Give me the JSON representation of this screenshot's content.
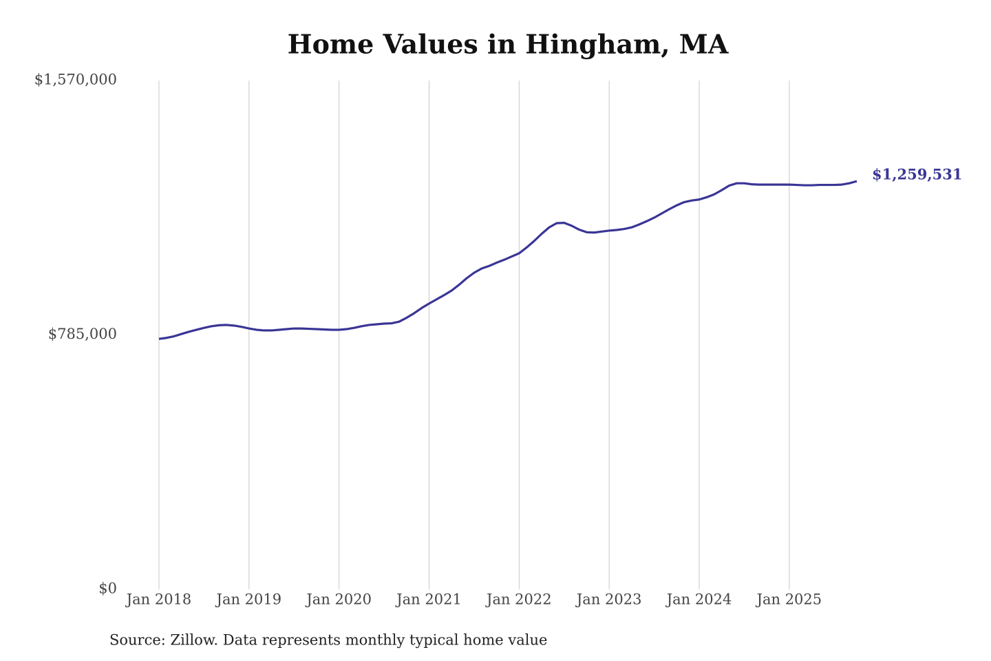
{
  "chart_data": {
    "type": "line",
    "title": "Home Values in Hingham, MA",
    "source": "Source: Zillow. Data represents monthly typical home value",
    "x": [
      "2018-01",
      "2018-02",
      "2018-03",
      "2018-04",
      "2018-05",
      "2018-06",
      "2018-07",
      "2018-08",
      "2018-09",
      "2018-10",
      "2018-11",
      "2018-12",
      "2019-01",
      "2019-02",
      "2019-03",
      "2019-04",
      "2019-05",
      "2019-06",
      "2019-07",
      "2019-08",
      "2019-09",
      "2019-10",
      "2019-11",
      "2019-12",
      "2020-01",
      "2020-02",
      "2020-03",
      "2020-04",
      "2020-05",
      "2020-06",
      "2020-07",
      "2020-08",
      "2020-09",
      "2020-10",
      "2020-11",
      "2020-12",
      "2021-01",
      "2021-02",
      "2021-03",
      "2021-04",
      "2021-05",
      "2021-06",
      "2021-07",
      "2021-08",
      "2021-09",
      "2021-10",
      "2021-11",
      "2021-12",
      "2022-01",
      "2022-02",
      "2022-03",
      "2022-04",
      "2022-05",
      "2022-06",
      "2022-07",
      "2022-08",
      "2022-09",
      "2022-10",
      "2022-11",
      "2022-12",
      "2023-01",
      "2023-02",
      "2023-03",
      "2023-04",
      "2023-05",
      "2023-06",
      "2023-07",
      "2023-08",
      "2023-09",
      "2023-10",
      "2023-11",
      "2023-12",
      "2024-01",
      "2024-02",
      "2024-03",
      "2024-04",
      "2024-05",
      "2024-06",
      "2024-07",
      "2024-08",
      "2024-09",
      "2024-10",
      "2024-11",
      "2024-12",
      "2025-01",
      "2025-02",
      "2025-03",
      "2025-04",
      "2025-05",
      "2025-06",
      "2025-07",
      "2025-08",
      "2025-09",
      "2025-10"
    ],
    "series": [
      {
        "name": "Home value",
        "color": "#3a3596",
        "values": [
          773000,
          776000,
          781000,
          788000,
          795000,
          801000,
          807000,
          812000,
          815000,
          816000,
          814000,
          810000,
          805000,
          801000,
          799000,
          799000,
          801000,
          803000,
          805000,
          805000,
          804000,
          803000,
          802000,
          801000,
          801000,
          803000,
          807000,
          812000,
          816000,
          818000,
          820000,
          821000,
          826000,
          838000,
          852000,
          868000,
          882000,
          895000,
          908000,
          922000,
          940000,
          960000,
          977000,
          990000,
          998000,
          1008000,
          1017000,
          1027000,
          1037000,
          1055000,
          1075000,
          1097000,
          1117000,
          1130000,
          1131000,
          1122000,
          1110000,
          1102000,
          1101000,
          1104000,
          1107000,
          1109000,
          1112000,
          1117000,
          1126000,
          1136000,
          1147000,
          1160000,
          1173000,
          1185000,
          1195000,
          1200000,
          1203000,
          1210000,
          1219000,
          1232000,
          1246000,
          1253000,
          1253000,
          1250000,
          1249000,
          1249000,
          1249000,
          1249000,
          1249000,
          1248000,
          1247000,
          1247000,
          1248000,
          1248000,
          1248000,
          1249000,
          1253000,
          1259531
        ],
        "value_labels": [
          null,
          null,
          null,
          null,
          null,
          null,
          null,
          null,
          null,
          null,
          null,
          null,
          null,
          null,
          null,
          null,
          null,
          null,
          null,
          null,
          null,
          null,
          null,
          null,
          null,
          null,
          null,
          null,
          null,
          null,
          null,
          null,
          null,
          null,
          null,
          null,
          null,
          null,
          null,
          null,
          null,
          null,
          null,
          null,
          null,
          null,
          null,
          null,
          null,
          null,
          null,
          null,
          null,
          null,
          null,
          null,
          null,
          null,
          null,
          null,
          null,
          null,
          null,
          null,
          null,
          null,
          null,
          null,
          null,
          null,
          null,
          null,
          null,
          null,
          null,
          null,
          null,
          null,
          null,
          null,
          null,
          null,
          null,
          null,
          null,
          null,
          null,
          null,
          null,
          null,
          null,
          null,
          null,
          "$1,259,531"
        ]
      }
    ],
    "xlim": [
      "2018-01",
      "2025-10"
    ],
    "xticks": [
      {
        "value": "2018-01",
        "label": "Jan 2018"
      },
      {
        "value": "2019-01",
        "label": "Jan 2019"
      },
      {
        "value": "2020-01",
        "label": "Jan 2020"
      },
      {
        "value": "2021-01",
        "label": "Jan 2021"
      },
      {
        "value": "2022-01",
        "label": "Jan 2022"
      },
      {
        "value": "2023-01",
        "label": "Jan 2023"
      },
      {
        "value": "2024-01",
        "label": "Jan 2024"
      },
      {
        "value": "2025-01",
        "label": "Jan 2025"
      }
    ],
    "ylim": [
      0,
      1570000
    ],
    "yticks": [
      {
        "value": 0,
        "label": "$0"
      },
      {
        "value": 785000,
        "label": "$785,000"
      },
      {
        "value": 1570000,
        "label": "$1,570,000"
      }
    ],
    "grid": "x"
  }
}
